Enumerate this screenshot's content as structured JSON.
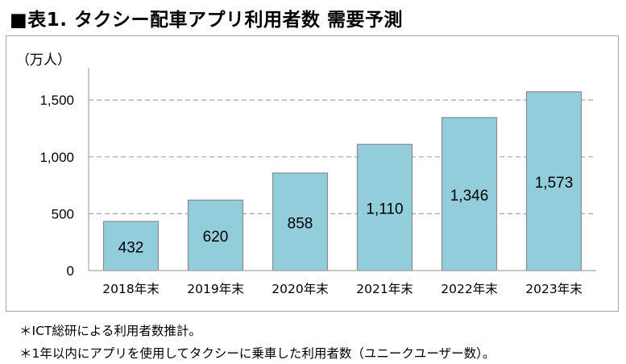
{
  "title": "■表1. タクシー配車アプリ利用者数 需要予測",
  "notes": [
    "＊ICT総研による利用者数推計。",
    "＊1年以内にアプリを使用してタクシーに乗車した利用者数（ユニークユーザー数）。"
  ],
  "chart_data": {
    "type": "bar",
    "unit_label": "（万人）",
    "categories": [
      "2018年末",
      "2019年末",
      "2020年末",
      "2021年末",
      "2022年末",
      "2023年末"
    ],
    "values": [
      432,
      620,
      858,
      1110,
      1346,
      1573
    ],
    "value_labels": [
      "432",
      "620",
      "858",
      "1,110",
      "1,346",
      "1,573"
    ],
    "yticks": [
      0,
      500,
      1000,
      1500
    ],
    "ytick_labels": [
      "0",
      "500",
      "1,000",
      "1,500"
    ],
    "ylim": [
      0,
      1700
    ],
    "grid": "dashed",
    "bar_color": "#92cddc",
    "bar_edge_color": "#8a8a8a",
    "grid_color": "#a6a6a6"
  }
}
